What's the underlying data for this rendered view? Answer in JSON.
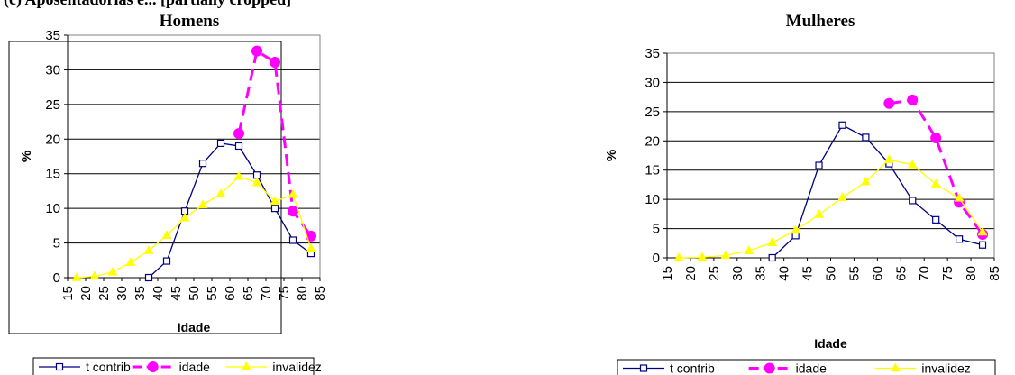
{
  "page": {
    "heading": "(c) Aposentadorias e... [partially cropped]"
  },
  "colors": {
    "t_contrib": "#000080",
    "idade": "#FF00FF",
    "invalidez": "#FFFF00"
  },
  "chart_data": [
    {
      "type": "line",
      "title": "Homens",
      "xlabel": "Idade",
      "ylabel": "%",
      "x_ticks": [
        15,
        20,
        25,
        30,
        35,
        40,
        45,
        50,
        55,
        60,
        65,
        70,
        75,
        80,
        85
      ],
      "ylim": [
        0,
        35
      ],
      "y_ticks": [
        0,
        5,
        10,
        15,
        20,
        25,
        30,
        35
      ],
      "legend_position": "bottom",
      "series": [
        {
          "name": "t contrib",
          "style": "solid",
          "marker": "square",
          "points": [
            [
              37.5,
              0
            ],
            [
              42.5,
              2.4
            ],
            [
              47.5,
              9.6
            ],
            [
              52.5,
              16.5
            ],
            [
              57.5,
              19.4
            ],
            [
              62.5,
              19.0
            ],
            [
              67.5,
              14.8
            ],
            [
              72.5,
              10.0
            ],
            [
              77.5,
              5.4
            ],
            [
              82.5,
              3.5
            ]
          ]
        },
        {
          "name": "idade",
          "style": "dashed",
          "marker": "circle",
          "points": [
            [
              62.5,
              20.8
            ],
            [
              67.5,
              32.7
            ],
            [
              72.5,
              31.1
            ],
            [
              77.5,
              9.6
            ],
            [
              82.5,
              6.0
            ]
          ]
        },
        {
          "name": "invalidez",
          "style": "solid",
          "marker": "triangle",
          "points": [
            [
              17.5,
              0
            ],
            [
              22.5,
              0.2
            ],
            [
              27.5,
              0.8
            ],
            [
              32.5,
              2.2
            ],
            [
              37.5,
              3.9
            ],
            [
              42.5,
              6.1
            ],
            [
              47.5,
              8.6
            ],
            [
              52.5,
              10.5
            ],
            [
              57.5,
              12.1
            ],
            [
              62.5,
              14.6
            ],
            [
              67.5,
              13.7
            ],
            [
              72.5,
              11.0
            ],
            [
              77.5,
              12.0
            ],
            [
              82.5,
              4.2
            ]
          ]
        }
      ]
    },
    {
      "type": "line",
      "title": "Mulheres",
      "xlabel": "Idade",
      "ylabel": "%",
      "x_ticks": [
        15,
        20,
        25,
        30,
        35,
        40,
        45,
        50,
        55,
        60,
        65,
        70,
        75,
        80,
        85
      ],
      "ylim": [
        0,
        35
      ],
      "y_ticks": [
        0,
        5,
        10,
        15,
        20,
        25,
        30,
        35
      ],
      "legend_position": "bottom",
      "series": [
        {
          "name": "t contrib",
          "style": "solid",
          "marker": "square",
          "points": [
            [
              37.5,
              0
            ],
            [
              42.5,
              3.8
            ],
            [
              47.5,
              15.8
            ],
            [
              52.5,
              22.7
            ],
            [
              57.5,
              20.6
            ],
            [
              62.5,
              16.1
            ],
            [
              67.5,
              9.8
            ],
            [
              72.5,
              6.5
            ],
            [
              77.5,
              3.2
            ],
            [
              82.5,
              2.2
            ]
          ]
        },
        {
          "name": "idade",
          "style": "dashed",
          "marker": "circle",
          "points": [
            [
              62.5,
              26.4
            ],
            [
              67.5,
              27.0
            ],
            [
              72.5,
              20.5
            ],
            [
              77.5,
              9.5
            ],
            [
              82.5,
              4.0
            ]
          ]
        },
        {
          "name": "invalidez",
          "style": "solid",
          "marker": "triangle",
          "points": [
            [
              17.5,
              0
            ],
            [
              22.5,
              0.1
            ],
            [
              27.5,
              0.4
            ],
            [
              32.5,
              1.2
            ],
            [
              37.5,
              2.6
            ],
            [
              42.5,
              4.7
            ],
            [
              47.5,
              7.4
            ],
            [
              52.5,
              10.3
            ],
            [
              57.5,
              13.0
            ],
            [
              62.5,
              16.8
            ],
            [
              67.5,
              15.9
            ],
            [
              72.5,
              12.6
            ],
            [
              77.5,
              10.2
            ],
            [
              82.5,
              4.4
            ]
          ]
        }
      ]
    }
  ]
}
